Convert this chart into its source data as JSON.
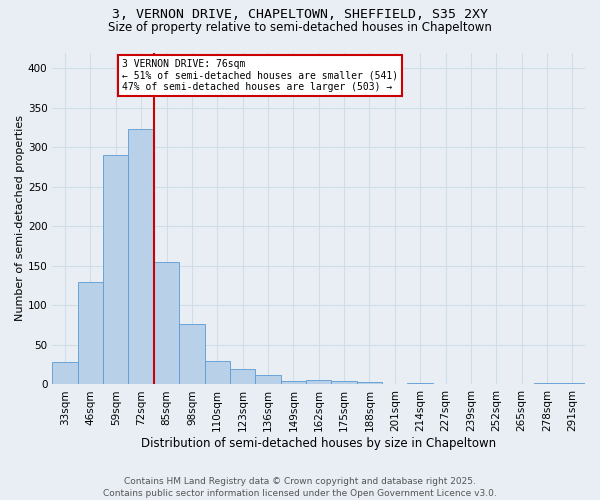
{
  "title_line1": "3, VERNON DRIVE, CHAPELTOWN, SHEFFIELD, S35 2XY",
  "title_line2": "Size of property relative to semi-detached houses in Chapeltown",
  "xlabel": "Distribution of semi-detached houses by size in Chapeltown",
  "ylabel": "Number of semi-detached properties",
  "footer_line1": "Contains HM Land Registry data © Crown copyright and database right 2025.",
  "footer_line2": "Contains public sector information licensed under the Open Government Licence v3.0.",
  "categories": [
    "33sqm",
    "46sqm",
    "59sqm",
    "72sqm",
    "85sqm",
    "98sqm",
    "110sqm",
    "123sqm",
    "136sqm",
    "149sqm",
    "162sqm",
    "175sqm",
    "188sqm",
    "201sqm",
    "214sqm",
    "227sqm",
    "239sqm",
    "252sqm",
    "265sqm",
    "278sqm",
    "291sqm"
  ],
  "values": [
    28,
    130,
    290,
    323,
    155,
    77,
    30,
    19,
    12,
    5,
    6,
    5,
    3,
    1,
    2,
    0,
    0,
    0,
    0,
    2,
    2
  ],
  "bar_color": "#b8d0e8",
  "bar_edge_color": "#5b9bd5",
  "grid_color": "#d0dce8",
  "annotation_text": "3 VERNON DRIVE: 76sqm\n← 51% of semi-detached houses are smaller (541)\n47% of semi-detached houses are larger (503) →",
  "annotation_box_facecolor": "#ffffff",
  "annotation_box_edgecolor": "#cc0000",
  "vline_color": "#cc0000",
  "vline_x": 3.5,
  "ylim": [
    0,
    420
  ],
  "yticks": [
    0,
    50,
    100,
    150,
    200,
    250,
    300,
    350,
    400
  ],
  "background_color": "#e8eef4",
  "title1_fontsize": 9.5,
  "title2_fontsize": 8.5,
  "xlabel_fontsize": 8.5,
  "ylabel_fontsize": 8,
  "tick_fontsize": 7.5,
  "annotation_fontsize": 7,
  "footer_fontsize": 6.5
}
